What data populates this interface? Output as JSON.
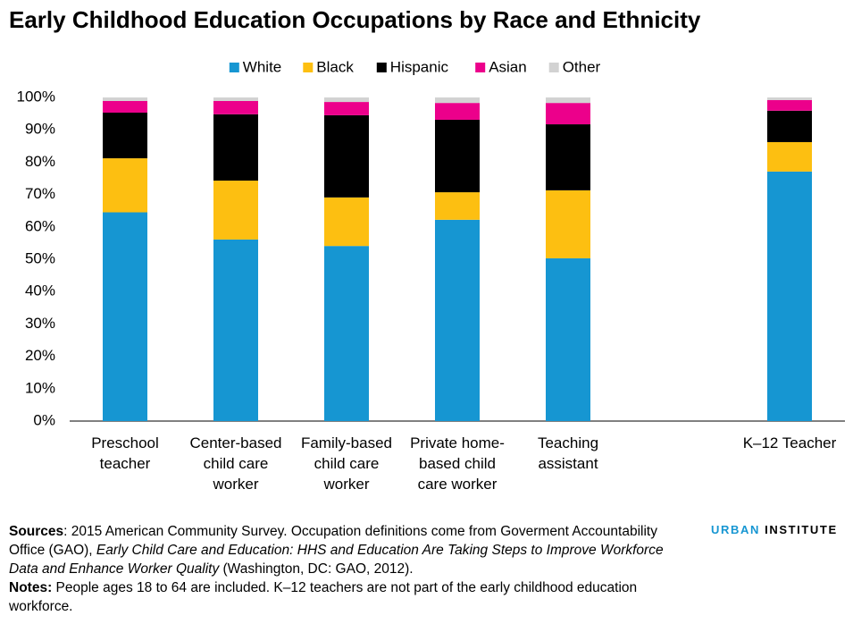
{
  "chart_data": {
    "type": "stacked_bar",
    "title": "Early Childhood Education Occupations by Race and Ethnicity",
    "categories": [
      "Preschool\nteacher",
      "Center-based\nchild care\nworker",
      "Family-based\nchild care\nworker",
      "Private home-\nbased child\ncare worker",
      "Teaching\nassistant",
      null,
      "K–12 Teacher"
    ],
    "series": [
      {
        "name": "White",
        "color": "#1696d2",
        "values": [
          64.5,
          56.1,
          54.1,
          62.2,
          50.3,
          null,
          77.1
        ]
      },
      {
        "name": "Black",
        "color": "#fdbf11",
        "values": [
          16.7,
          18.2,
          15.0,
          8.5,
          21.0,
          null,
          9.1
        ]
      },
      {
        "name": "Hispanic",
        "color": "#000000",
        "values": [
          14.1,
          20.5,
          25.4,
          22.4,
          20.4,
          null,
          9.7
        ]
      },
      {
        "name": "Asian",
        "color": "#ec008b",
        "values": [
          3.6,
          4.1,
          4.1,
          5.2,
          6.6,
          null,
          3.3
        ]
      },
      {
        "name": "Other",
        "color": "#d2d2d2",
        "values": [
          1.1,
          1.1,
          1.4,
          1.7,
          1.7,
          null,
          0.8
        ]
      }
    ],
    "ylim": [
      0,
      100
    ],
    "yticks": [
      {
        "value": 0,
        "label": "0%"
      },
      {
        "value": 10,
        "label": "10%"
      },
      {
        "value": 20,
        "label": "20%"
      },
      {
        "value": 30,
        "label": "30%"
      },
      {
        "value": 40,
        "label": "40%"
      },
      {
        "value": 50,
        "label": "50%"
      },
      {
        "value": 60,
        "label": "60%"
      },
      {
        "value": 70,
        "label": "70%"
      },
      {
        "value": 80,
        "label": "80%"
      },
      {
        "value": 90,
        "label": "90%"
      },
      {
        "value": 100,
        "label": "100%"
      }
    ],
    "legend": "top"
  },
  "footer": {
    "sources_label": "Sources",
    "sources_text_1": ": 2015 American Community Survey. Occupation definitions come from Goverment Accountability Office (GAO), ",
    "sources_italic": "Early Child Care and Education: HHS and Education Are Taking Steps to Improve Workforce Data and Enhance Worker Quality",
    "sources_text_2": " (Washington, DC: GAO, 2012).",
    "notes_label": "Notes:",
    "notes_text": " People ages 18 to 64 are included. K–12 teachers are not part of the early childhood education workforce.",
    "brand": [
      "URBAN",
      "INSTITUTE"
    ]
  }
}
